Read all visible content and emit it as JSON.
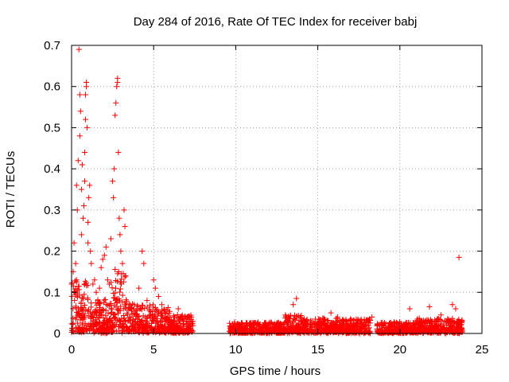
{
  "chart_data": {
    "type": "scatter",
    "title": "Day 284 of 2016, Rate Of TEC Index for receiver babj",
    "xlabel": "GPS time / hours",
    "ylabel": "ROTI / TECUs",
    "xlim": [
      0,
      25
    ],
    "ylim": [
      0,
      0.7
    ],
    "xticks": [
      0,
      5,
      10,
      15,
      20,
      25
    ],
    "xtick_labels": [
      "0",
      "5",
      "10",
      "15",
      "20",
      "25"
    ],
    "yticks": [
      0,
      0.1,
      0.2,
      0.3,
      0.4,
      0.5,
      0.6,
      0.7
    ],
    "ytick_labels": [
      "0",
      "0.1",
      "0.2",
      "0.3",
      "0.4",
      "0.5",
      "0.6",
      "0.7"
    ],
    "grid": true,
    "marker": "+",
    "color": "#ff0000",
    "series": [
      {
        "name": "ROTI",
        "points": [
          [
            0.0,
            0.12
          ],
          [
            0.1,
            0.15
          ],
          [
            0.15,
            0.22
          ],
          [
            0.2,
            0.1
          ],
          [
            0.25,
            0.17
          ],
          [
            0.3,
            0.36
          ],
          [
            0.3,
            0.13
          ],
          [
            0.35,
            0.3
          ],
          [
            0.4,
            0.05
          ],
          [
            0.4,
            0.42
          ],
          [
            0.45,
            0.69
          ],
          [
            0.5,
            0.58
          ],
          [
            0.5,
            0.48
          ],
          [
            0.55,
            0.54
          ],
          [
            0.6,
            0.35
          ],
          [
            0.6,
            0.24
          ],
          [
            0.65,
            0.41
          ],
          [
            0.7,
            0.28
          ],
          [
            0.75,
            0.31
          ],
          [
            0.8,
            0.44
          ],
          [
            0.8,
            0.37
          ],
          [
            0.85,
            0.52
          ],
          [
            0.85,
            0.58
          ],
          [
            0.9,
            0.61
          ],
          [
            0.9,
            0.6
          ],
          [
            0.95,
            0.5
          ],
          [
            1.0,
            0.27
          ],
          [
            1.0,
            0.22
          ],
          [
            1.05,
            0.33
          ],
          [
            1.1,
            0.36
          ],
          [
            1.15,
            0.2
          ],
          [
            1.2,
            0.17
          ],
          [
            1.3,
            0.12
          ],
          [
            1.4,
            0.13
          ],
          [
            1.5,
            0.1
          ],
          [
            1.6,
            0.08
          ],
          [
            1.7,
            0.11
          ],
          [
            1.8,
            0.16
          ],
          [
            1.9,
            0.18
          ],
          [
            2.0,
            0.19
          ],
          [
            2.1,
            0.21
          ],
          [
            2.2,
            0.13
          ],
          [
            2.3,
            0.12
          ],
          [
            2.4,
            0.23
          ],
          [
            2.5,
            0.37
          ],
          [
            2.55,
            0.33
          ],
          [
            2.6,
            0.4
          ],
          [
            2.65,
            0.53
          ],
          [
            2.7,
            0.56
          ],
          [
            2.75,
            0.6
          ],
          [
            2.8,
            0.62
          ],
          [
            2.8,
            0.61
          ],
          [
            2.85,
            0.44
          ],
          [
            2.9,
            0.28
          ],
          [
            2.95,
            0.24
          ],
          [
            3.0,
            0.2
          ],
          [
            3.1,
            0.17
          ],
          [
            3.2,
            0.3
          ],
          [
            3.25,
            0.26
          ],
          [
            3.3,
            0.14
          ],
          [
            3.5,
            0.07
          ],
          [
            3.8,
            0.06
          ],
          [
            4.1,
            0.11
          ],
          [
            4.3,
            0.2
          ],
          [
            4.4,
            0.17
          ],
          [
            4.6,
            0.08
          ],
          [
            5.0,
            0.13
          ],
          [
            5.1,
            0.11
          ],
          [
            5.3,
            0.09
          ],
          [
            5.5,
            0.07
          ],
          [
            6.0,
            0.04
          ],
          [
            6.5,
            0.06
          ],
          [
            7.0,
            0.03
          ],
          [
            23.6,
            0.185
          ],
          [
            13.7,
            0.085
          ],
          [
            13.5,
            0.07
          ],
          [
            15.8,
            0.05
          ],
          [
            16.2,
            0.04
          ],
          [
            17.0,
            0.035
          ],
          [
            18.3,
            0.04
          ],
          [
            20.6,
            0.06
          ],
          [
            21.8,
            0.065
          ],
          [
            22.5,
            0.045
          ],
          [
            23.2,
            0.07
          ],
          [
            23.4,
            0.06
          ]
        ],
        "dense_band": {
          "segments": [
            {
              "x": [
                0.0,
                1.0
              ],
              "y": [
                0.0,
                0.14
              ]
            },
            {
              "x": [
                1.0,
                2.4
              ],
              "y": [
                0.0,
                0.09
              ]
            },
            {
              "x": [
                2.4,
                3.4
              ],
              "y": [
                0.0,
                0.17
              ]
            },
            {
              "x": [
                3.4,
                5.0
              ],
              "y": [
                0.0,
                0.08
              ]
            },
            {
              "x": [
                5.0,
                6.0
              ],
              "y": [
                0.0,
                0.07
              ]
            },
            {
              "x": [
                6.0,
                7.4
              ],
              "y": [
                0.0,
                0.05
              ]
            },
            {
              "x": [
                9.6,
                13.0
              ],
              "y": [
                0.0,
                0.03
              ]
            },
            {
              "x": [
                13.0,
                14.0
              ],
              "y": [
                0.0,
                0.05
              ]
            },
            {
              "x": [
                14.0,
                18.2
              ],
              "y": [
                0.0,
                0.04
              ]
            },
            {
              "x": [
                18.6,
                21.0
              ],
              "y": [
                0.0,
                0.03
              ]
            },
            {
              "x": [
                21.0,
                23.8
              ],
              "y": [
                0.0,
                0.04
              ]
            }
          ],
          "count_per_hour": 110
        }
      }
    ]
  }
}
